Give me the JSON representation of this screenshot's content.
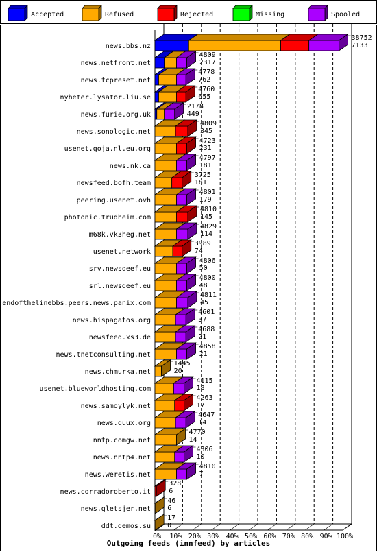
{
  "chart_data": {
    "type": "bar",
    "title": "Outgoing feeds (innfeed) by articles",
    "legend": {
      "placement": "top",
      "items": [
        {
          "name": "Accepted",
          "color": "#0000ff"
        },
        {
          "name": "Refused",
          "color": "#ffaa00"
        },
        {
          "name": "Rejected",
          "color": "#ff0000"
        },
        {
          "name": "Missing",
          "color": "#00ff00"
        },
        {
          "name": "Spooled",
          "color": "#aa00ff"
        }
      ]
    },
    "x_ticks": [
      "0%",
      "10%",
      "20%",
      "30%",
      "40%",
      "50%",
      "60%",
      "70%",
      "80%",
      "90%",
      "100%"
    ],
    "xlim": [
      0,
      100
    ],
    "rows": [
      {
        "name": "news.bbs.nz",
        "label_top": "38752",
        "label_bottom": "7133",
        "accepted": 18.0,
        "refused": 49.0,
        "rejected": 15.0,
        "missing": 0,
        "spooled": 16.0
      },
      {
        "name": "news.netfront.net",
        "label_top": "4809",
        "label_bottom": "2317",
        "accepted": 5.0,
        "refused": 6.5,
        "rejected": 0,
        "missing": 0,
        "spooled": 5.5
      },
      {
        "name": "news.tcpreset.net",
        "label_top": "4778",
        "label_bottom": "762",
        "accepted": 2.0,
        "refused": 9.5,
        "rejected": 0,
        "missing": 0,
        "spooled": 5.0
      },
      {
        "name": "nyheter.lysator.liu.se",
        "label_top": "4760",
        "label_bottom": "655",
        "accepted": 2.0,
        "refused": 9.5,
        "rejected": 5.0,
        "missing": 0,
        "spooled": 0
      },
      {
        "name": "news.furie.org.uk",
        "label_top": "2178",
        "label_bottom": "449",
        "accepted": 1.0,
        "refused": 4.0,
        "rejected": 0,
        "missing": 0,
        "spooled": 5.5
      },
      {
        "name": "news.sonologic.net",
        "label_top": "4809",
        "label_bottom": "345",
        "accepted": 0,
        "refused": 11.0,
        "rejected": 6.5,
        "missing": 0,
        "spooled": 0
      },
      {
        "name": "usenet.goja.nl.eu.org",
        "label_top": "4723",
        "label_bottom": "231",
        "accepted": 0,
        "refused": 11.5,
        "rejected": 5.5,
        "missing": 0,
        "spooled": 0
      },
      {
        "name": "news.nk.ca",
        "label_top": "4797",
        "label_bottom": "181",
        "accepted": 0,
        "refused": 11.5,
        "rejected": 0,
        "missing": 0,
        "spooled": 5.5
      },
      {
        "name": "newsfeed.bofh.team",
        "label_top": "3725",
        "label_bottom": "181",
        "accepted": 0,
        "refused": 9.0,
        "rejected": 5.5,
        "missing": 0,
        "spooled": 0
      },
      {
        "name": "peering.usenet.ovh",
        "label_top": "4801",
        "label_bottom": "179",
        "accepted": 0,
        "refused": 11.5,
        "rejected": 0,
        "missing": 0,
        "spooled": 5.5
      },
      {
        "name": "photonic.trudheim.com",
        "label_top": "4810",
        "label_bottom": "145",
        "accepted": 0,
        "refused": 11.5,
        "rejected": 6.0,
        "missing": 0,
        "spooled": 0
      },
      {
        "name": "m68k.vk3heg.net",
        "label_top": "4829",
        "label_bottom": "114",
        "accepted": 0,
        "refused": 11.5,
        "rejected": 0,
        "missing": 0,
        "spooled": 6.0
      },
      {
        "name": "usenet.network",
        "label_top": "3989",
        "label_bottom": "74",
        "accepted": 0,
        "refused": 9.5,
        "rejected": 5.0,
        "missing": 0,
        "spooled": 0
      },
      {
        "name": "srv.newsdeef.eu",
        "label_top": "4806",
        "label_bottom": "50",
        "accepted": 0,
        "refused": 11.5,
        "rejected": 0,
        "missing": 0,
        "spooled": 5.5
      },
      {
        "name": "srl.newsdeef.eu",
        "label_top": "4800",
        "label_bottom": "48",
        "accepted": 0,
        "refused": 11.5,
        "rejected": 0,
        "missing": 0,
        "spooled": 5.5
      },
      {
        "name": "endofthelinebbs.peers.news.panix.com",
        "label_top": "4811",
        "label_bottom": "45",
        "accepted": 0,
        "refused": 11.5,
        "rejected": 0,
        "missing": 0,
        "spooled": 6.0
      },
      {
        "name": "news.hispagatos.org",
        "label_top": "4601",
        "label_bottom": "37",
        "accepted": 0,
        "refused": 11.0,
        "rejected": 0,
        "missing": 0,
        "spooled": 5.5
      },
      {
        "name": "newsfeed.xs3.de",
        "label_top": "4688",
        "label_bottom": "21",
        "accepted": 0,
        "refused": 11.0,
        "rejected": 0,
        "missing": 0,
        "spooled": 5.5
      },
      {
        "name": "news.tnetconsulting.net",
        "label_top": "4858",
        "label_bottom": "21",
        "accepted": 0,
        "refused": 11.5,
        "rejected": 0,
        "missing": 0,
        "spooled": 5.5
      },
      {
        "name": "news.chmurka.net",
        "label_top": "1445",
        "label_bottom": "20",
        "accepted": 0,
        "refused": 3.5,
        "rejected": 0,
        "missing": 0,
        "spooled": 0
      },
      {
        "name": "usenet.blueworldhosting.com",
        "label_top": "4115",
        "label_bottom": "18",
        "accepted": 0,
        "refused": 10.0,
        "rejected": 0,
        "missing": 0,
        "spooled": 5.5
      },
      {
        "name": "news.samoylyk.net",
        "label_top": "4263",
        "label_bottom": "17",
        "accepted": 0,
        "refused": 10.5,
        "rejected": 5.0,
        "missing": 0,
        "spooled": 0
      },
      {
        "name": "news.quux.org",
        "label_top": "4647",
        "label_bottom": "14",
        "accepted": 0,
        "refused": 11.0,
        "rejected": 0,
        "missing": 0,
        "spooled": 5.5
      },
      {
        "name": "nntp.comgw.net",
        "label_top": "4770",
        "label_bottom": "14",
        "accepted": 0,
        "refused": 11.5,
        "rejected": 0,
        "missing": 0,
        "spooled": 0
      },
      {
        "name": "news.nntp4.net",
        "label_top": "4306",
        "label_bottom": "10",
        "accepted": 0,
        "refused": 10.5,
        "rejected": 0,
        "missing": 0,
        "spooled": 5.0
      },
      {
        "name": "news.weretis.net",
        "label_top": "4810",
        "label_bottom": "7",
        "accepted": 0,
        "refused": 11.5,
        "rejected": 0,
        "missing": 0,
        "spooled": 5.5
      },
      {
        "name": "news.corradoroberto.it",
        "label_top": "328",
        "label_bottom": "6",
        "accepted": 0,
        "refused": 0,
        "rejected": 0.8,
        "missing": 0,
        "spooled": 0
      },
      {
        "name": "news.gletsjer.net",
        "label_top": "46",
        "label_bottom": "6",
        "accepted": 0,
        "refused": 0.1,
        "rejected": 0,
        "missing": 0,
        "spooled": 0
      },
      {
        "name": "ddt.demos.su",
        "label_top": "17",
        "label_bottom": "0",
        "accepted": 0,
        "refused": 0.05,
        "rejected": 0,
        "missing": 0,
        "spooled": 0
      }
    ]
  }
}
